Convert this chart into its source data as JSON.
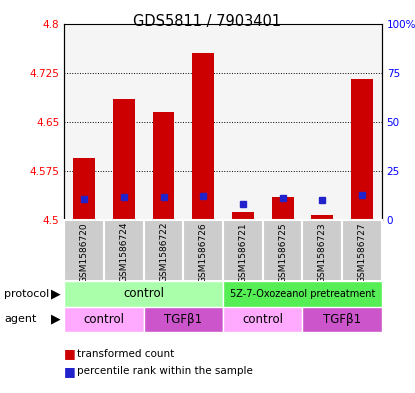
{
  "title": "GDS5811 / 7903401",
  "samples": [
    "GSM1586720",
    "GSM1586724",
    "GSM1586722",
    "GSM1586726",
    "GSM1586721",
    "GSM1586725",
    "GSM1586723",
    "GSM1586727"
  ],
  "bar_bottoms": [
    4.5,
    4.5,
    4.5,
    4.5,
    4.5,
    4.5,
    4.5,
    4.5
  ],
  "bar_tops": [
    4.595,
    4.685,
    4.665,
    4.755,
    4.513,
    4.535,
    4.507,
    4.715
  ],
  "blue_marker_values": [
    4.532,
    4.535,
    4.535,
    4.537,
    4.525,
    4.533,
    4.53,
    4.538
  ],
  "ylim": [
    4.5,
    4.8
  ],
  "yticks": [
    4.5,
    4.575,
    4.65,
    4.725,
    4.8
  ],
  "ytick_labels": [
    "4.5",
    "4.575",
    "4.65",
    "4.725",
    "4.8"
  ],
  "right_yticks_pct": [
    0,
    25,
    50,
    75,
    100
  ],
  "right_ytick_labels": [
    "0",
    "25",
    "50",
    "75",
    "100%"
  ],
  "bar_color": "#cc0000",
  "blue_color": "#2222cc",
  "protocol_color_control": "#aaffaa",
  "protocol_color_5z": "#55ee55",
  "agent_color_control": "#ffaaff",
  "agent_color_tgf": "#cc55cc",
  "protocol_labels": [
    "control",
    "5Z-7-Oxozeanol pretreatment"
  ],
  "protocol_split": 4,
  "agent_groups": [
    [
      0,
      2,
      "control"
    ],
    [
      2,
      4,
      "TGFβ1"
    ],
    [
      4,
      6,
      "control"
    ],
    [
      6,
      8,
      "TGFβ1"
    ]
  ]
}
